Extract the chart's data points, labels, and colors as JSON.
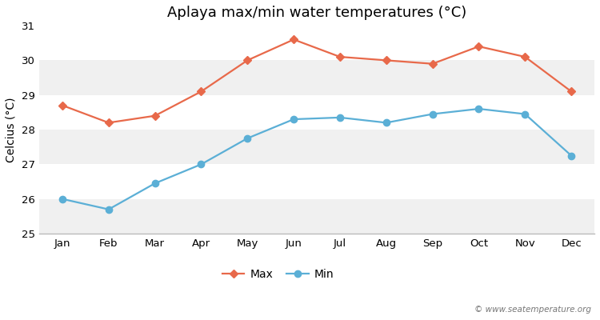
{
  "title": "Aplaya max/min water temperatures (°C)",
  "ylabel": "Celcius (°C)",
  "months": [
    "Jan",
    "Feb",
    "Mar",
    "Apr",
    "May",
    "Jun",
    "Jul",
    "Aug",
    "Sep",
    "Oct",
    "Nov",
    "Dec"
  ],
  "max_temps": [
    28.7,
    28.2,
    28.4,
    29.1,
    30.0,
    30.6,
    30.1,
    30.0,
    29.9,
    30.4,
    30.1,
    29.1
  ],
  "min_temps": [
    26.0,
    25.7,
    26.45,
    27.0,
    27.75,
    28.3,
    28.35,
    28.2,
    28.45,
    28.6,
    28.45,
    27.25
  ],
  "max_color": "#e8694a",
  "min_color": "#5bafd6",
  "bg_color": "#ffffff",
  "plot_bg_color": "#ffffff",
  "band_color_light": "#f0f0f0",
  "band_color_white": "#ffffff",
  "ylim": [
    25,
    31
  ],
  "yticks": [
    25,
    26,
    27,
    28,
    29,
    30,
    31
  ],
  "watermark": "© www.seatemperature.org",
  "legend_labels": [
    "Max",
    "Min"
  ],
  "title_fontsize": 13,
  "axis_label_fontsize": 10,
  "tick_fontsize": 9.5,
  "legend_fontsize": 10
}
